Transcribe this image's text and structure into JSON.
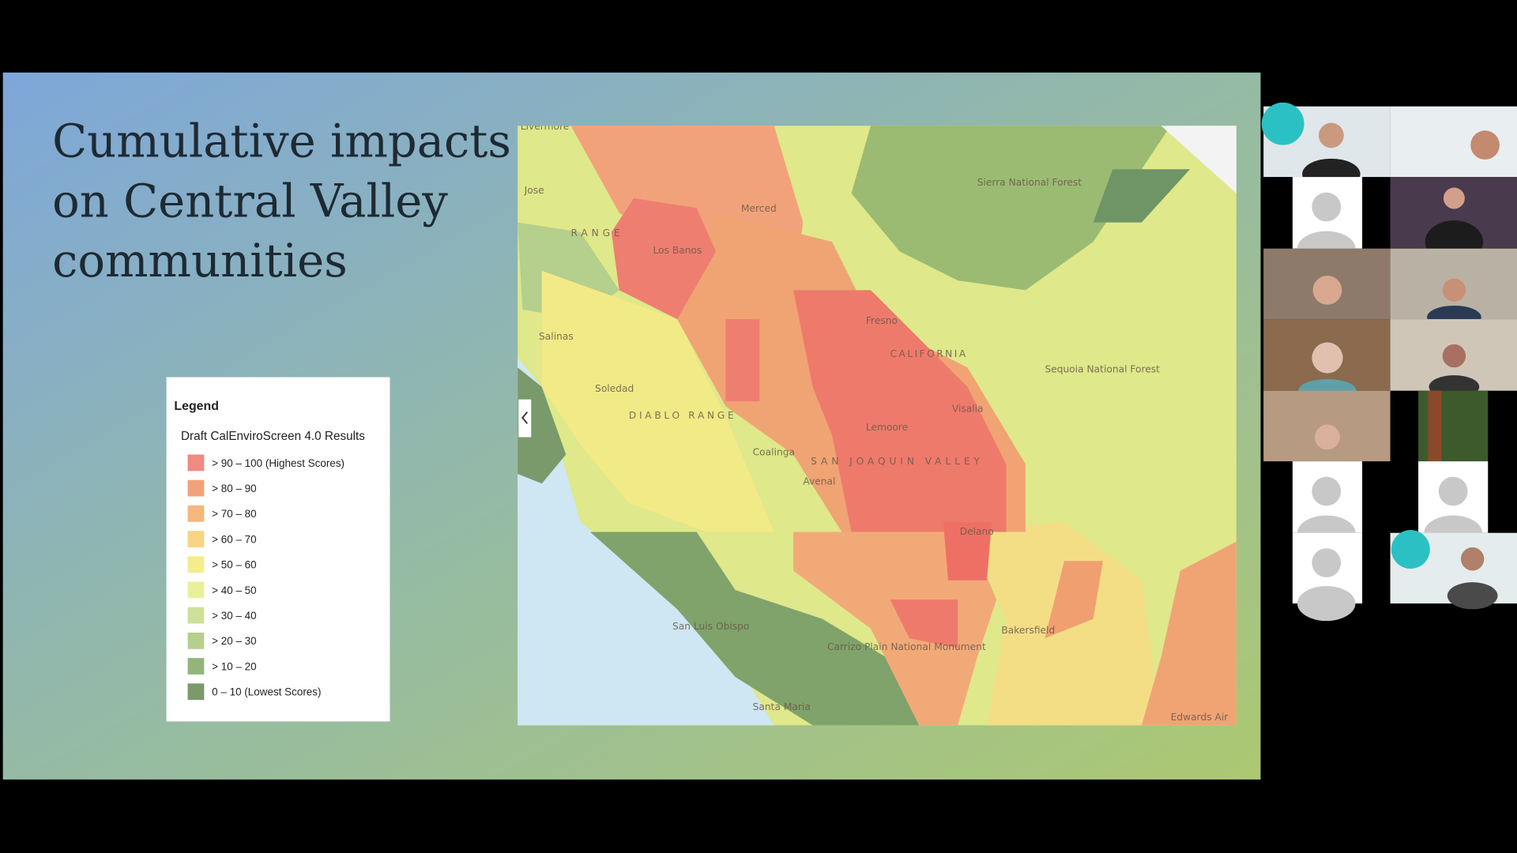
{
  "slide": {
    "title_lines": [
      "Cumulative impacts",
      "on Central Valley",
      "communities"
    ]
  },
  "legend": {
    "heading": "Legend",
    "layer": "Draft CalEnviroScreen 4.0 Results",
    "items": [
      {
        "label": "> 90 – 100 (Highest Scores)",
        "color": "#f08a82"
      },
      {
        "label": "> 80 – 90",
        "color": "#f2a27a"
      },
      {
        "label": "> 70 – 80",
        "color": "#f5b77c"
      },
      {
        "label": "> 60 – 70",
        "color": "#f7d384"
      },
      {
        "label": "> 50 – 60",
        "color": "#f5ec8c"
      },
      {
        "label": "> 40 – 50",
        "color": "#eaf09a"
      },
      {
        "label": "> 30 – 40",
        "color": "#cfe09a"
      },
      {
        "label": "> 20 – 30",
        "color": "#b5cf8c"
      },
      {
        "label": "> 10 – 20",
        "color": "#93b57c"
      },
      {
        "label": "0 – 10 (Lowest Scores)",
        "color": "#7a9a6c"
      }
    ]
  },
  "map": {
    "labels": [
      "Livermore",
      "Jose",
      "RANGE",
      "Merced",
      "Los Banos",
      "Fresno",
      "CALIFORNIA",
      "Salinas",
      "Soledad",
      "DIABLO RANGE",
      "Lemoore",
      "Visalia",
      "Coalinga",
      "SAN JOAQUIN VALLEY",
      "Avenal",
      "Delano",
      "Bakersfield",
      "San Luis Obispo",
      "Santa Maria",
      "Sierra National Forest",
      "Sequoia National Forest",
      "Carrizo Plain National Monument",
      "Edwards Air"
    ]
  }
}
